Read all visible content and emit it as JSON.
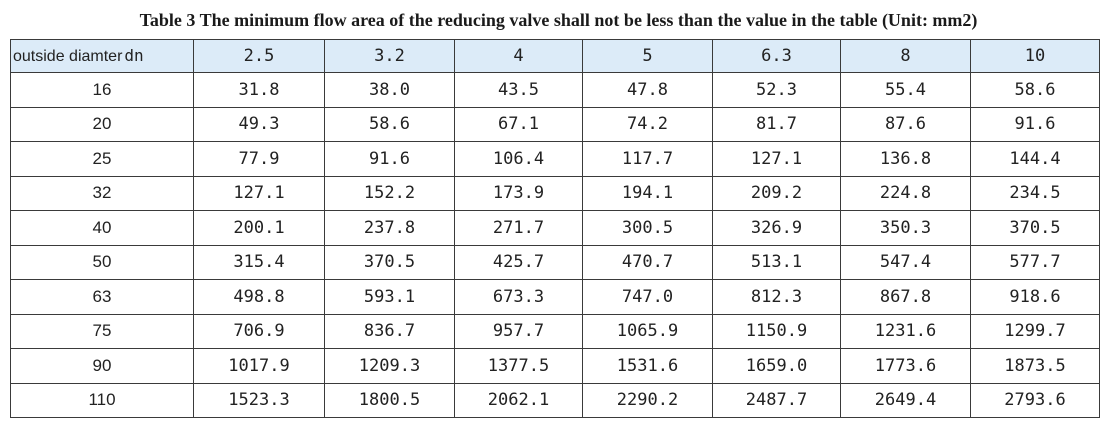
{
  "title": "Table 3 The minimum flow area of the reducing valve shall not be less than the value in the table   (Unit: mm2)",
  "header": {
    "first_label": "outside diamter",
    "first_unit": "dn",
    "columns": [
      "2.5",
      "3.2",
      "4",
      "5",
      "6.3",
      "8",
      "10"
    ]
  },
  "rows": [
    {
      "dn": "16",
      "values": [
        "31.8",
        "38.0",
        "43.5",
        "47.8",
        "52.3",
        "55.4",
        "58.6"
      ]
    },
    {
      "dn": "20",
      "values": [
        "49.3",
        "58.6",
        "67.1",
        "74.2",
        "81.7",
        "87.6",
        "91.6"
      ]
    },
    {
      "dn": "25",
      "values": [
        "77.9",
        "91.6",
        "106.4",
        "117.7",
        "127.1",
        "136.8",
        "144.4"
      ]
    },
    {
      "dn": "32",
      "values": [
        "127.1",
        "152.2",
        "173.9",
        "194.1",
        "209.2",
        "224.8",
        "234.5"
      ]
    },
    {
      "dn": "40",
      "values": [
        "200.1",
        "237.8",
        "271.7",
        "300.5",
        "326.9",
        "350.3",
        "370.5"
      ]
    },
    {
      "dn": "50",
      "values": [
        "315.4",
        "370.5",
        "425.7",
        "470.7",
        "513.1",
        "547.4",
        "577.7"
      ]
    },
    {
      "dn": "63",
      "values": [
        "498.8",
        "593.1",
        "673.3",
        "747.0",
        "812.3",
        "867.8",
        "918.6"
      ]
    },
    {
      "dn": "75",
      "values": [
        "706.9",
        "836.7",
        "957.7",
        "1065.9",
        "1150.9",
        "1231.6",
        "1299.7"
      ]
    },
    {
      "dn": "90",
      "values": [
        "1017.9",
        "1209.3",
        "1377.5",
        "1531.6",
        "1659.0",
        "1773.6",
        "1873.5"
      ]
    },
    {
      "dn": "110",
      "values": [
        "1523.3",
        "1800.5",
        "2062.1",
        "2290.2",
        "2487.7",
        "2649.4",
        "2793.6"
      ]
    }
  ]
}
